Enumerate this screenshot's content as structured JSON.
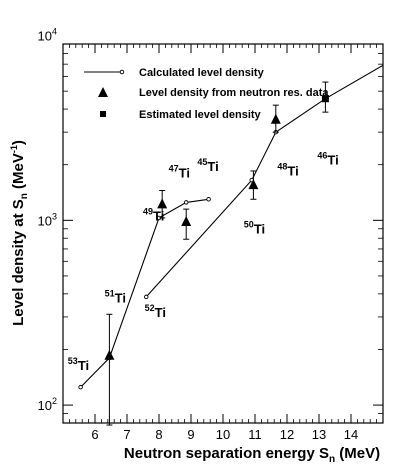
{
  "chart_data": {
    "type": "line",
    "xlabel": "Neutron separation energy S",
    "xlabel_sub": "n",
    "xlabel_unit": " (MeV)",
    "ylabel": "Level density at S",
    "ylabel_sub": "n",
    "ylabel_unit": " (MeV",
    "ylabel_unit_sup": "-1",
    "ylabel_unit_close": ")",
    "xlim": [
      5.0,
      15.0
    ],
    "ylim": [
      80,
      9000
    ],
    "yscale": "log",
    "grid": false,
    "legend_position": "top-left",
    "x_ticks": [
      6,
      7,
      8,
      9,
      10,
      11,
      12,
      13,
      14
    ],
    "y_ticks": [
      {
        "value": 100,
        "base": "10",
        "exp": "2"
      },
      {
        "value": 1000,
        "base": "10",
        "exp": "3"
      },
      {
        "value": 10000,
        "base": "10",
        "exp": "4"
      }
    ],
    "series": [
      {
        "name": "Calculated level density",
        "marker": "open-circle",
        "segments": [
          [
            [
              5.55,
              125
            ],
            [
              6.45,
              180
            ],
            [
              8.0,
              1030
            ],
            [
              8.85,
              1250
            ],
            [
              9.55,
              1300
            ]
          ],
          [
            [
              7.6,
              385
            ],
            [
              10.9,
              1650
            ],
            [
              11.65,
              3000
            ],
            [
              13.2,
              4550
            ],
            [
              15.0,
              6900
            ]
          ]
        ]
      },
      {
        "name": "Level density from neutron res. data",
        "marker": "filled-triangle",
        "points": [
          {
            "x": 6.45,
            "y": 185,
            "err_low": 78,
            "err_high": 310
          },
          {
            "x": 8.1,
            "y": 1220,
            "err_low": 1030,
            "err_high": 1450
          },
          {
            "x": 8.85,
            "y": 980,
            "err_low": 790,
            "err_high": 1150
          },
          {
            "x": 10.95,
            "y": 1550,
            "err_low": 1300,
            "err_high": 1850
          },
          {
            "x": 11.65,
            "y": 3500,
            "err_low": 3000,
            "err_high": 4200
          }
        ]
      },
      {
        "name": "Estimated level density",
        "marker": "filled-square",
        "points": [
          {
            "x": 13.2,
            "y": 4550,
            "err_low": 3850,
            "err_high": 5600
          }
        ]
      }
    ],
    "annotations": [
      {
        "id": "ti53",
        "mass": "53",
        "symbol": "Ti",
        "x": 5.15,
        "y": 155
      },
      {
        "id": "ti51",
        "mass": "51",
        "symbol": "Ti",
        "x": 6.3,
        "y": 360
      },
      {
        "id": "ti52",
        "mass": "52",
        "symbol": "Ti",
        "x": 7.55,
        "y": 300
      },
      {
        "id": "ti49",
        "mass": "49",
        "symbol": "Ti",
        "x": 7.5,
        "y": 1000
      },
      {
        "id": "ti47",
        "mass": "47",
        "symbol": "Ti",
        "x": 8.3,
        "y": 1700
      },
      {
        "id": "ti45",
        "mass": "45",
        "symbol": "Ti",
        "x": 9.2,
        "y": 1850
      },
      {
        "id": "ti50",
        "mass": "50",
        "symbol": "Ti",
        "x": 10.65,
        "y": 850
      },
      {
        "id": "ti48",
        "mass": "48",
        "symbol": "Ti",
        "x": 11.7,
        "y": 1750
      },
      {
        "id": "ti46",
        "mass": "46",
        "symbol": "Ti",
        "x": 12.95,
        "y": 2000
      }
    ]
  }
}
